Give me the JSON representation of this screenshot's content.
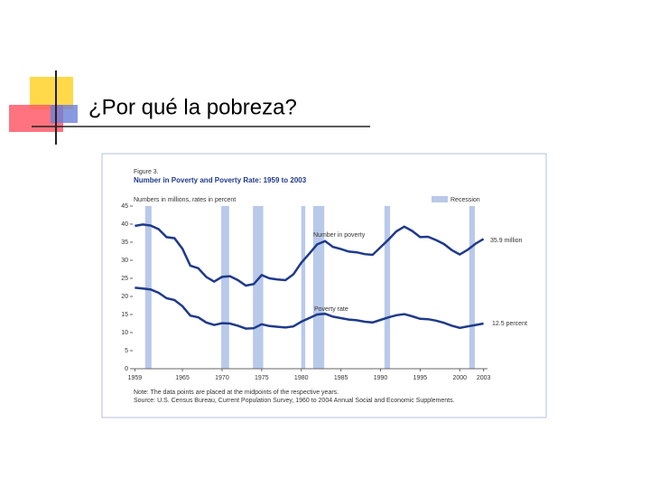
{
  "slide_title": "¿Por qué la pobreza?",
  "chart_data": {
    "type": "line",
    "figure_label": "Figure 3.",
    "title": "Number in Poverty and Poverty Rate: 1959 to 2003",
    "y_label": "Numbers in millions, rates in percent",
    "x": [
      1959,
      1960,
      1961,
      1962,
      1963,
      1964,
      1965,
      1966,
      1967,
      1968,
      1969,
      1970,
      1971,
      1972,
      1973,
      1974,
      1975,
      1976,
      1977,
      1978,
      1979,
      1980,
      1981,
      1982,
      1983,
      1984,
      1985,
      1986,
      1987,
      1988,
      1989,
      1990,
      1991,
      1992,
      1993,
      1994,
      1995,
      1996,
      1997,
      1998,
      1999,
      2000,
      2001,
      2002,
      2003
    ],
    "series": [
      {
        "name": "Number in poverty",
        "color": "#1f3a8a",
        "values": [
          39.5,
          39.9,
          39.6,
          38.6,
          36.4,
          36.1,
          33.2,
          28.5,
          27.8,
          25.4,
          24.1,
          25.4,
          25.6,
          24.5,
          23.0,
          23.4,
          25.9,
          25.0,
          24.7,
          24.5,
          26.1,
          29.3,
          31.8,
          34.4,
          35.3,
          33.7,
          33.1,
          32.4,
          32.2,
          31.7,
          31.5,
          33.6,
          35.7,
          38.0,
          39.3,
          38.1,
          36.4,
          36.5,
          35.6,
          34.5,
          32.8,
          31.6,
          32.9,
          34.6,
          35.9
        ]
      },
      {
        "name": "Poverty rate",
        "color": "#1f3a8a",
        "values": [
          22.4,
          22.2,
          21.9,
          21.0,
          19.5,
          19.0,
          17.3,
          14.7,
          14.2,
          12.8,
          12.1,
          12.6,
          12.5,
          11.9,
          11.1,
          11.2,
          12.3,
          11.8,
          11.6,
          11.4,
          11.7,
          13.0,
          14.0,
          15.0,
          15.2,
          14.4,
          14.0,
          13.6,
          13.4,
          13.0,
          12.8,
          13.5,
          14.2,
          14.8,
          15.1,
          14.5,
          13.8,
          13.7,
          13.3,
          12.7,
          11.9,
          11.3,
          11.7,
          12.1,
          12.5
        ]
      }
    ],
    "end_labels": [
      "35.9 million",
      "12.5 percent"
    ],
    "recession_name": "Recession",
    "recession_color": "#b9c9ea",
    "recessions": [
      [
        1960.3,
        1961.1
      ],
      [
        1969.9,
        1970.9
      ],
      [
        1973.9,
        1975.2
      ],
      [
        1980.0,
        1980.5
      ],
      [
        1981.5,
        1982.9
      ],
      [
        1990.5,
        1991.2
      ],
      [
        2001.2,
        2001.9
      ]
    ],
    "xlim": [
      1958.5,
      2003.5
    ],
    "xticks": [
      1959,
      1965,
      1970,
      1975,
      1980,
      1985,
      1990,
      1995,
      2000,
      2003
    ],
    "ylim": [
      0,
      45
    ],
    "yticks": [
      0,
      5,
      10,
      15,
      20,
      25,
      30,
      35,
      40,
      45
    ],
    "note": "Note: The data points are placed at the midpoints of the respective years.",
    "source": "Source: U.S. Census Bureau, Current Population Survey, 1960 to 2004 Annual Social and Economic Supplements."
  }
}
